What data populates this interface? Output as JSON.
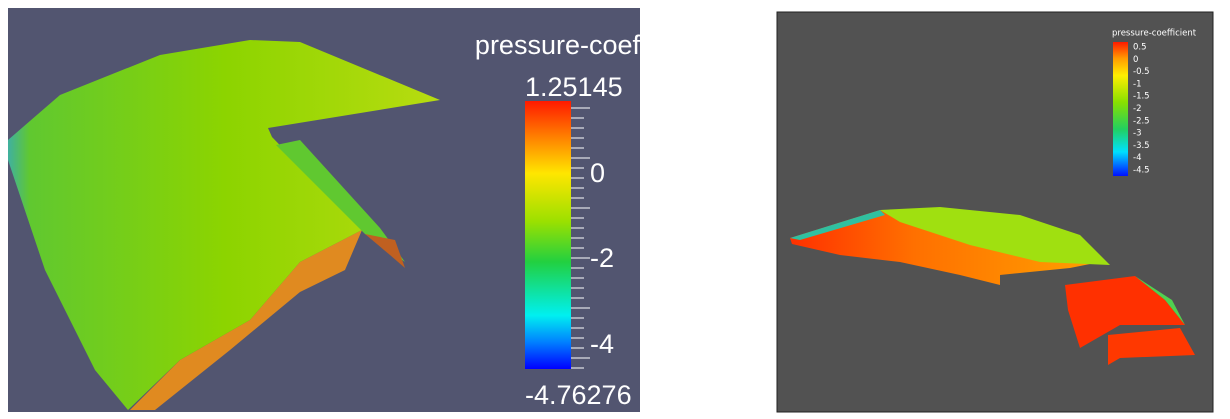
{
  "left_view": {
    "colorbar": {
      "title": "pressure-coef",
      "max_label": "1.25145",
      "min_label": "-4.76276",
      "tick_labels": [
        "0",
        "-2",
        "-4"
      ]
    }
  },
  "right_view": {
    "colorbar": {
      "title": "pressure-coefficient",
      "tick_labels": [
        "0.5",
        "0",
        "-0.5",
        "-1",
        "-1.5",
        "-2",
        "-2.5",
        "-3",
        "-3.5",
        "-4",
        "-4.5"
      ]
    }
  }
}
